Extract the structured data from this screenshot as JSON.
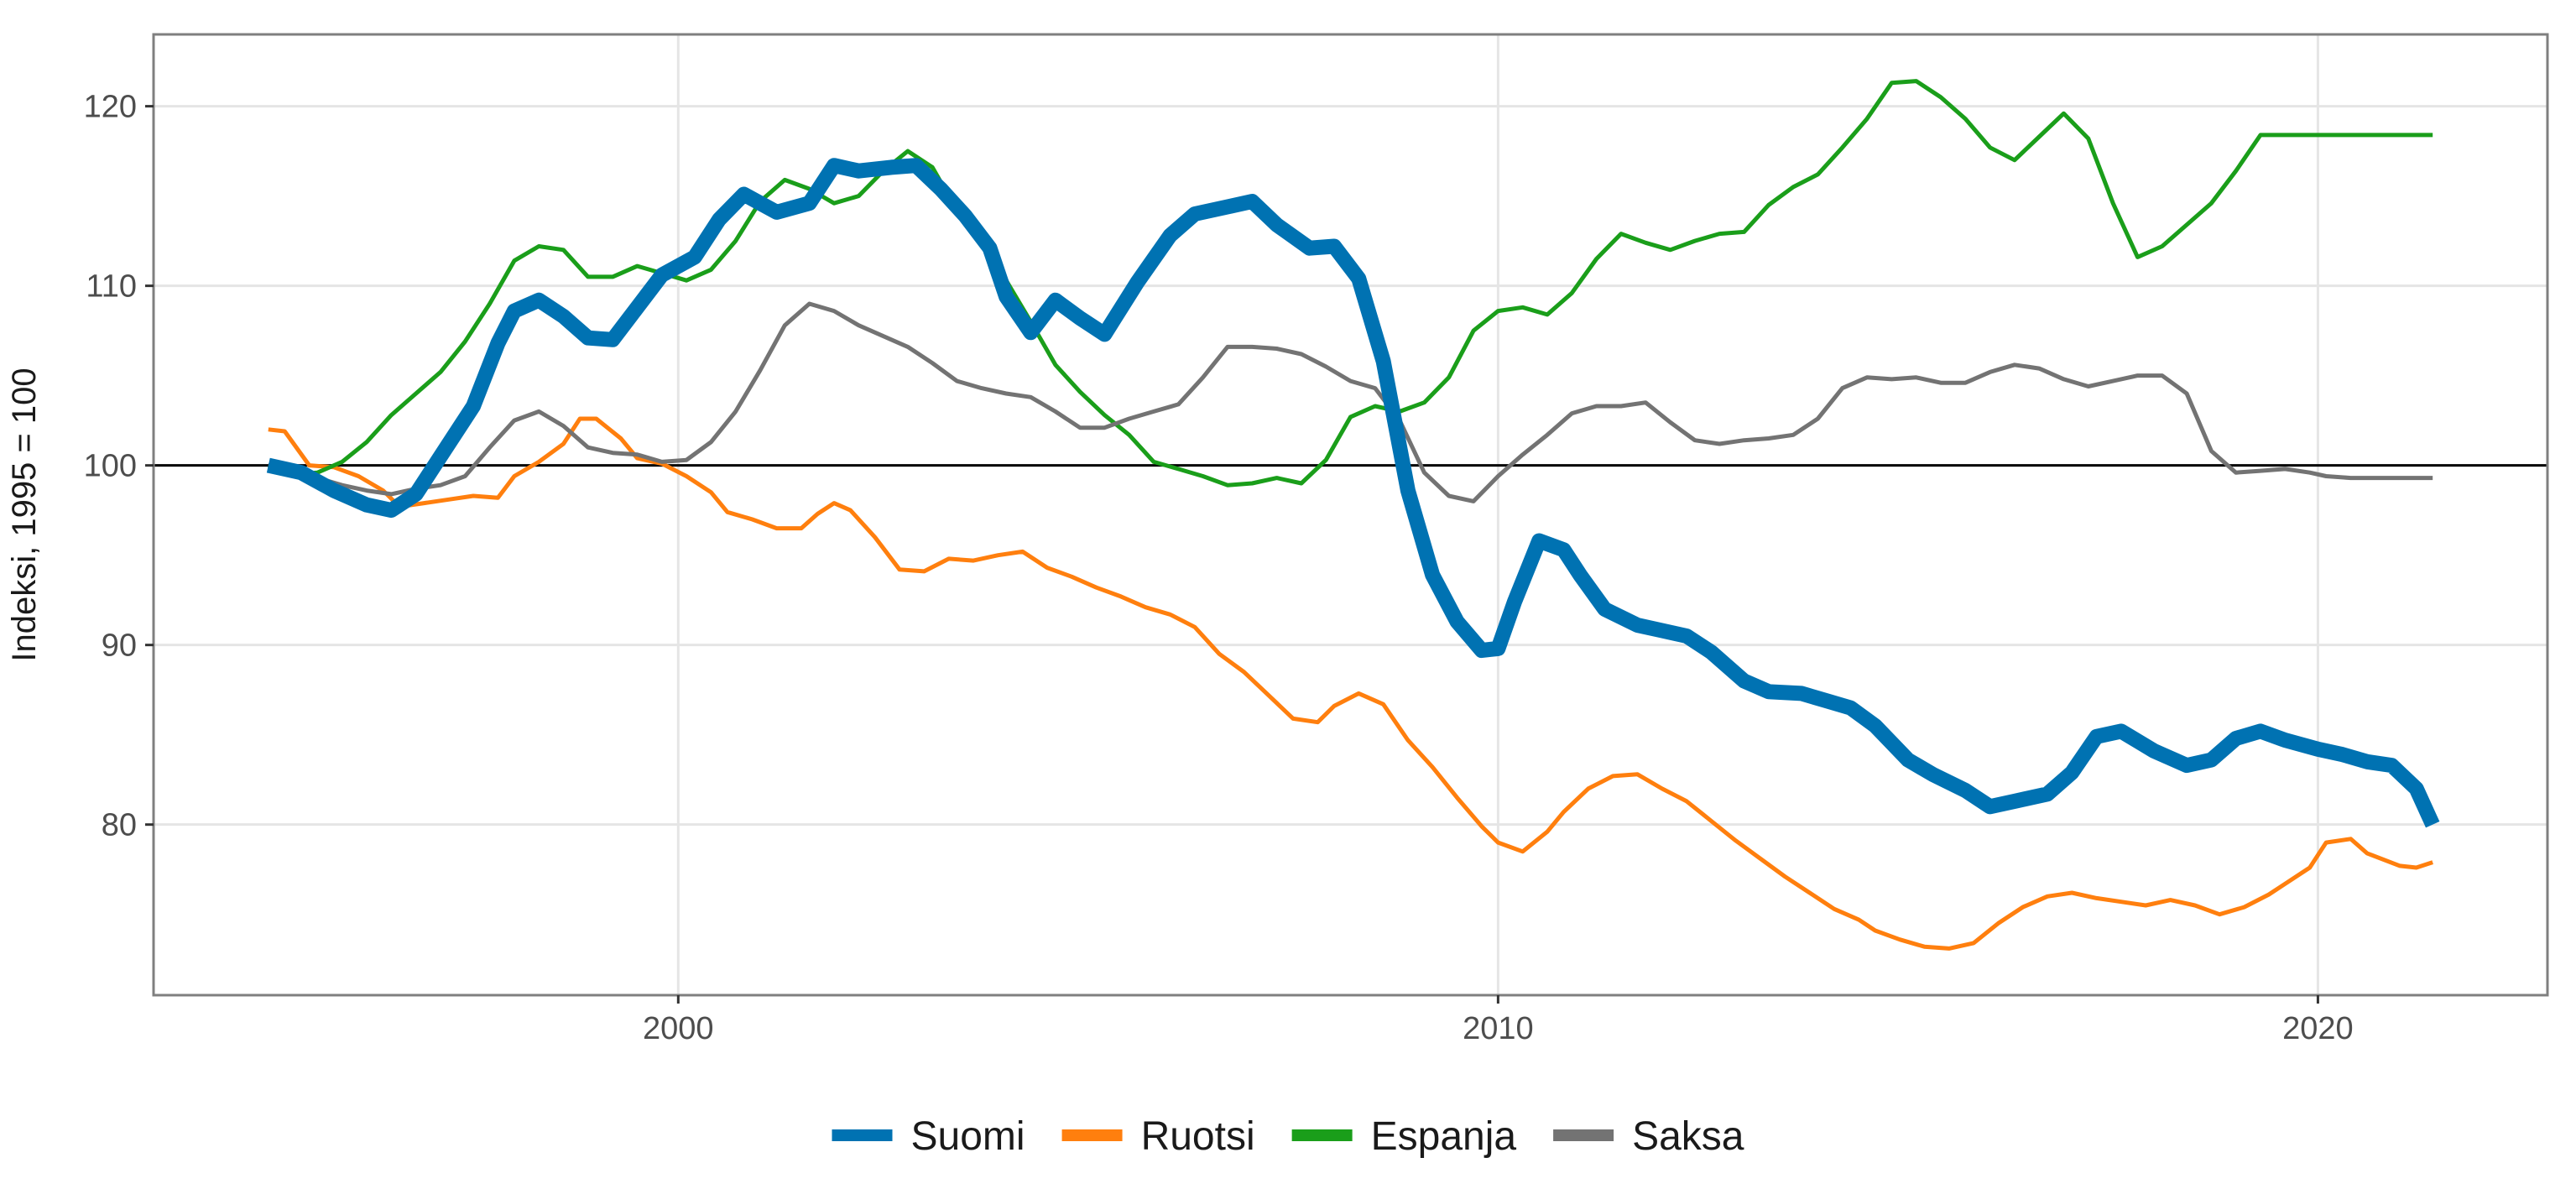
{
  "chart_data": {
    "type": "line",
    "title": "",
    "xlabel": "",
    "ylabel": "Indeksi, 1995 = 100",
    "xlim": [
      1993.6,
      2022.8
    ],
    "ylim": [
      70.5,
      124
    ],
    "x_ticks": [
      2000,
      2010,
      2020
    ],
    "y_ticks": [
      80,
      90,
      100,
      110,
      120
    ],
    "reference_line": 100,
    "grid": true,
    "legend_position": "bottom",
    "series": [
      {
        "name": "Suomi",
        "color": "#0072b2",
        "emphasis": true,
        "x": [
          1995.0,
          1995.4,
          1995.8,
          1996.2,
          1996.5,
          1996.8,
          1997.1,
          1997.5,
          1997.8,
          1998.0,
          1998.3,
          1998.6,
          1998.9,
          1999.2,
          1999.5,
          1999.8,
          2000.2,
          2000.5,
          2000.8,
          2001.2,
          2001.6,
          2001.9,
          2002.2,
          2002.6,
          2002.9,
          2003.2,
          2003.5,
          2003.8,
          2004.0,
          2004.3,
          2004.6,
          2004.9,
          2005.2,
          2005.6,
          2006.0,
          2006.3,
          2006.7,
          2007.0,
          2007.3,
          2007.7,
          2008.0,
          2008.3,
          2008.6,
          2008.9,
          2009.2,
          2009.5,
          2009.8,
          2010.0,
          2010.2,
          2010.5,
          2010.8,
          2011.0,
          2011.3,
          2011.7,
          2012.0,
          2012.3,
          2012.6,
          2013.0,
          2013.3,
          2013.7,
          2014.0,
          2014.3,
          2014.6,
          2015.0,
          2015.3,
          2015.7,
          2016.0,
          2016.3,
          2016.7,
          2017.0,
          2017.3,
          2017.6,
          2018.0,
          2018.4,
          2018.7,
          2019.0,
          2019.3,
          2019.6,
          2020.0,
          2020.3,
          2020.6,
          2020.9,
          2021.2,
          2021.4
        ],
        "y": [
          100,
          99.6,
          98.6,
          97.8,
          97.5,
          98.4,
          100.5,
          103.3,
          106.8,
          108.6,
          109.2,
          108.3,
          107.1,
          107.0,
          108.8,
          110.6,
          111.6,
          113.7,
          115.1,
          114.1,
          114.6,
          116.7,
          116.4,
          116.6,
          116.7,
          115.4,
          113.9,
          112.1,
          109.4,
          107.4,
          109.2,
          108.2,
          107.3,
          110.2,
          112.8,
          114.0,
          114.4,
          114.7,
          113.4,
          112.1,
          112.2,
          110.4,
          105.8,
          98.6,
          93.9,
          91.3,
          89.7,
          89.8,
          92.4,
          95.8,
          95.3,
          93.9,
          92.0,
          91.1,
          90.8,
          90.5,
          89.6,
          88.0,
          87.4,
          87.3,
          86.9,
          86.5,
          85.5,
          83.6,
          82.8,
          81.9,
          81.0,
          81.3,
          81.7,
          82.9,
          84.9,
          85.2,
          84.1,
          83.3,
          83.6,
          84.8,
          85.2,
          84.7,
          84.2,
          83.9,
          83.5,
          83.3,
          82.0,
          80.0
        ]
      },
      {
        "name": "Ruotsi",
        "color": "#ff7f0e",
        "emphasis": false,
        "x": [
          1995.0,
          1995.2,
          1995.5,
          1995.8,
          1996.1,
          1996.4,
          1996.6,
          1996.9,
          1997.2,
          1997.5,
          1997.8,
          1998.0,
          1998.3,
          1998.6,
          1998.8,
          1999.0,
          1999.3,
          1999.5,
          1999.8,
          2000.1,
          2000.4,
          2000.6,
          2000.9,
          2001.2,
          2001.5,
          2001.7,
          2001.9,
          2002.1,
          2002.4,
          2002.7,
          2003.0,
          2003.3,
          2003.6,
          2003.9,
          2004.2,
          2004.5,
          2004.8,
          2005.1,
          2005.4,
          2005.7,
          2006.0,
          2006.3,
          2006.6,
          2006.9,
          2007.2,
          2007.5,
          2007.8,
          2008.0,
          2008.3,
          2008.6,
          2008.9,
          2009.2,
          2009.5,
          2009.8,
          2010.0,
          2010.3,
          2010.6,
          2010.8,
          2011.1,
          2011.4,
          2011.7,
          2012.0,
          2012.3,
          2012.6,
          2012.9,
          2013.2,
          2013.5,
          2013.8,
          2014.1,
          2014.4,
          2014.6,
          2014.9,
          2015.2,
          2015.5,
          2015.8,
          2016.1,
          2016.4,
          2016.7,
          2017.0,
          2017.3,
          2017.6,
          2017.9,
          2018.2,
          2018.5,
          2018.8,
          2019.1,
          2019.4,
          2019.6,
          2019.9,
          2020.1,
          2020.4,
          2020.6,
          2021.0,
          2021.2,
          2021.4
        ],
        "y": [
          102.0,
          101.9,
          100.0,
          99.9,
          99.4,
          98.6,
          97.7,
          97.9,
          98.1,
          98.3,
          98.2,
          99.4,
          100.2,
          101.2,
          102.6,
          102.6,
          101.5,
          100.4,
          100.1,
          99.4,
          98.5,
          97.4,
          97.0,
          96.5,
          96.5,
          97.3,
          97.9,
          97.5,
          96.0,
          94.2,
          94.1,
          94.8,
          94.7,
          95.0,
          95.2,
          94.3,
          93.8,
          93.2,
          92.7,
          92.1,
          91.7,
          91.0,
          89.5,
          88.5,
          87.2,
          85.9,
          85.7,
          86.6,
          87.3,
          86.7,
          84.7,
          83.2,
          81.5,
          79.9,
          79.0,
          78.5,
          79.6,
          80.7,
          82.0,
          82.7,
          82.8,
          82.0,
          81.3,
          80.2,
          79.1,
          78.1,
          77.1,
          76.2,
          75.3,
          74.7,
          74.1,
          73.6,
          73.2,
          73.1,
          73.4,
          74.5,
          75.4,
          76.0,
          76.2,
          75.9,
          75.7,
          75.5,
          75.8,
          75.5,
          75.0,
          75.4,
          76.1,
          76.7,
          77.6,
          79.0,
          79.2,
          78.4,
          77.7,
          77.6,
          77.9
        ]
      },
      {
        "name": "Espanja",
        "color": "#1a9e1a",
        "emphasis": false,
        "x": [
          1995.0,
          1995.3,
          1995.6,
          1995.9,
          1996.2,
          1996.5,
          1996.8,
          1997.1,
          1997.4,
          1997.7,
          1998.0,
          1998.3,
          1998.6,
          1998.9,
          1999.2,
          1999.5,
          1999.8,
          2000.1,
          2000.4,
          2000.7,
          2001.0,
          2001.3,
          2001.6,
          2001.9,
          2002.2,
          2002.5,
          2002.8,
          2003.1,
          2003.4,
          2003.7,
          2004.0,
          2004.3,
          2004.6,
          2004.9,
          2005.2,
          2005.5,
          2005.8,
          2006.1,
          2006.4,
          2006.7,
          2007.0,
          2007.3,
          2007.6,
          2007.9,
          2008.2,
          2008.5,
          2008.8,
          2009.1,
          2009.4,
          2009.7,
          2010.0,
          2010.3,
          2010.6,
          2010.9,
          2011.2,
          2011.5,
          2011.8,
          2012.1,
          2012.4,
          2012.7,
          2013.0,
          2013.3,
          2013.6,
          2013.9,
          2014.2,
          2014.5,
          2014.8,
          2015.1,
          2015.4,
          2015.7,
          2016.0,
          2016.3,
          2016.6,
          2016.9,
          2017.2,
          2017.5,
          2017.8,
          2018.1,
          2018.4,
          2018.7,
          2019.0,
          2019.3,
          2019.6,
          2019.9,
          2020.1,
          2020.4,
          2020.7,
          2021.0,
          2021.2,
          2021.4
        ],
        "y": [
          100,
          99.5,
          99.6,
          100.2,
          101.3,
          102.8,
          104.0,
          105.2,
          106.9,
          109.0,
          111.4,
          112.2,
          112.0,
          110.5,
          110.5,
          111.1,
          110.7,
          110.3,
          110.9,
          112.5,
          114.7,
          115.9,
          115.4,
          114.6,
          115.0,
          116.4,
          117.5,
          116.6,
          114.2,
          112.4,
          110.3,
          108.0,
          105.6,
          104.1,
          102.8,
          101.7,
          100.2,
          99.8,
          99.4,
          98.9,
          99.0,
          99.3,
          99.0,
          100.3,
          102.7,
          103.3,
          103.0,
          103.5,
          104.9,
          107.5,
          108.6,
          108.8,
          108.4,
          109.6,
          111.5,
          112.9,
          112.4,
          112.0,
          112.5,
          112.9,
          113.0,
          114.5,
          115.5,
          116.2,
          117.7,
          119.3,
          121.3,
          121.4,
          120.5,
          119.3,
          117.7,
          117.0,
          118.3,
          119.6,
          118.2,
          114.6,
          111.6,
          112.2,
          113.4,
          114.6,
          116.4,
          118.4,
          118.4,
          118.4,
          118.4,
          118.4,
          118.4,
          118.4,
          118.4,
          118.4
        ],
        "x_override_note": ""
      },
      {
        "name": "Saksa",
        "color": "#737373",
        "emphasis": false,
        "x": [
          1995.0,
          1995.3,
          1995.6,
          1995.9,
          1996.2,
          1996.5,
          1996.8,
          1997.1,
          1997.4,
          1997.7,
          1998.0,
          1998.3,
          1998.6,
          1998.9,
          1999.2,
          1999.5,
          1999.8,
          2000.1,
          2000.4,
          2000.7,
          2001.0,
          2001.3,
          2001.6,
          2001.9,
          2002.2,
          2002.5,
          2002.8,
          2003.1,
          2003.4,
          2003.7,
          2004.0,
          2004.3,
          2004.6,
          2004.9,
          2005.2,
          2005.5,
          2005.8,
          2006.1,
          2006.4,
          2006.7,
          2007.0,
          2007.3,
          2007.6,
          2007.9,
          2008.2,
          2008.5,
          2008.8,
          2009.1,
          2009.4,
          2009.7,
          2010.0,
          2010.3,
          2010.6,
          2010.9,
          2011.2,
          2011.5,
          2011.8,
          2012.1,
          2012.4,
          2012.7,
          2013.0,
          2013.3,
          2013.6,
          2013.9,
          2014.2,
          2014.5,
          2014.8,
          2015.1,
          2015.4,
          2015.7,
          2016.0,
          2016.3,
          2016.6,
          2016.9,
          2017.2,
          2017.5,
          2017.8,
          2018.1,
          2018.4,
          2018.7,
          2019.0,
          2019.3,
          2019.6,
          2019.9,
          2020.1,
          2020.4,
          2020.7,
          2021.0,
          2021.2,
          2021.4
        ],
        "y": [
          100,
          99.9,
          99.3,
          98.9,
          98.6,
          98.4,
          98.7,
          98.9,
          99.4,
          101.0,
          102.5,
          103.0,
          102.2,
          101.0,
          100.7,
          100.6,
          100.2,
          100.3,
          101.3,
          103.0,
          105.3,
          107.8,
          109.0,
          108.6,
          107.8,
          107.2,
          106.6,
          105.7,
          104.7,
          104.3,
          104.0,
          103.8,
          103.0,
          102.1,
          102.1,
          102.6,
          103.0,
          103.4,
          104.9,
          106.6,
          106.6,
          106.5,
          106.2,
          105.5,
          104.7,
          104.3,
          102.5,
          99.6,
          98.3,
          98.0,
          99.4,
          100.6,
          101.7,
          102.9,
          103.3,
          103.3,
          103.5,
          102.4,
          101.4,
          101.2,
          101.4,
          101.5,
          101.7,
          102.6,
          104.3,
          104.9,
          104.8,
          104.9,
          104.6,
          104.6,
          105.2,
          105.6,
          105.4,
          104.8,
          104.4,
          104.7,
          105.0,
          105.0,
          104.0,
          100.8,
          99.6,
          99.7,
          99.8,
          99.6,
          99.4,
          99.3,
          99.3,
          99.3,
          99.3,
          99.3
        ]
      }
    ]
  }
}
